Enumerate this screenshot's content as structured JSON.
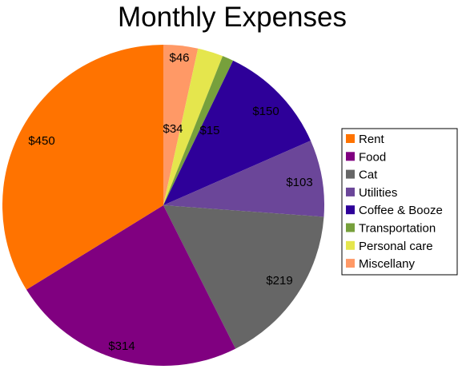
{
  "chart_data": {
    "type": "pie",
    "title": "Monthly Expenses",
    "legend_position": "right",
    "start": "top, clockwise from 12 o'clock",
    "slices": [
      {
        "name": "Miscellany",
        "value": 46,
        "label": "$46",
        "color": "#ff9966"
      },
      {
        "name": "Personal care",
        "value": 34,
        "label": "$34",
        "color": "#e5e64d"
      },
      {
        "name": "Transportation",
        "value": 15,
        "label": "$15",
        "color": "#77a03c"
      },
      {
        "name": "Coffee & Booze",
        "value": 150,
        "label": "$150",
        "color": "#2e0099"
      },
      {
        "name": "Utilities",
        "value": 103,
        "label": "$103",
        "color": "#6b4699"
      },
      {
        "name": "Cat",
        "value": 219,
        "label": "$219",
        "color": "#666666"
      },
      {
        "name": "Food",
        "value": 314,
        "label": "$314",
        "color": "#800080"
      },
      {
        "name": "Rent",
        "value": 450,
        "label": "$450",
        "color": "#ff7300"
      }
    ],
    "legend_order": [
      "Rent",
      "Food",
      "Cat",
      "Utilities",
      "Coffee & Booze",
      "Transportation",
      "Personal care",
      "Miscellany"
    ]
  }
}
